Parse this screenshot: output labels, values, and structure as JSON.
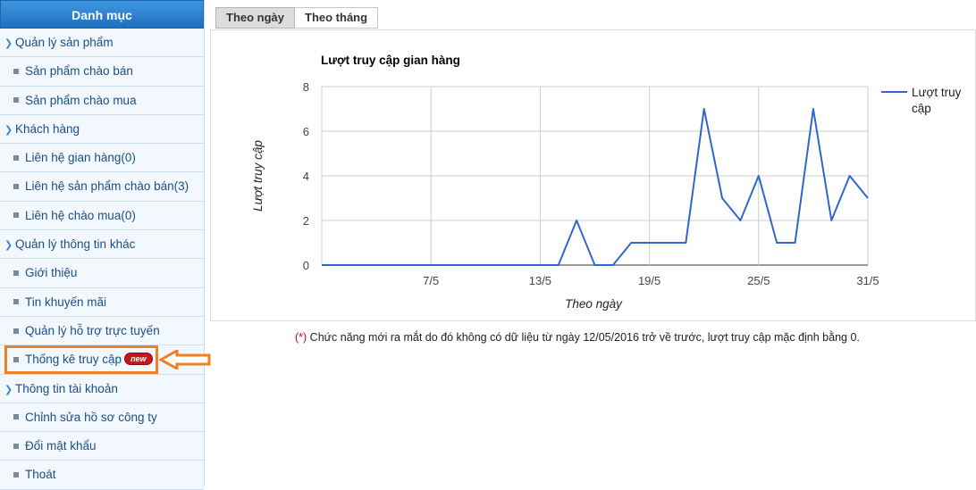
{
  "sidebar": {
    "header": "Danh mục",
    "items": [
      {
        "label": "Quản lý sản phẩm",
        "kind": "group"
      },
      {
        "label": "Sản phẩm chào bán",
        "kind": "sub"
      },
      {
        "label": "Sản phẩm chào mua",
        "kind": "sub"
      },
      {
        "label": "Khách hàng",
        "kind": "group"
      },
      {
        "label": "Liên hệ gian hàng(0)",
        "kind": "sub"
      },
      {
        "label": "Liên hệ sản phẩm chào bán(3)",
        "kind": "sub"
      },
      {
        "label": "Liên hệ chào mua(0)",
        "kind": "sub"
      },
      {
        "label": "Quản lý thông tin khác",
        "kind": "group"
      },
      {
        "label": "Giới thiệu",
        "kind": "sub"
      },
      {
        "label": "Tin khuyến mãi",
        "kind": "sub"
      },
      {
        "label": "Quản lý hỗ trợ trực tuyến",
        "kind": "sub"
      },
      {
        "label": "Thống kê truy cập",
        "kind": "sub",
        "badge": "new",
        "highlighted": true
      },
      {
        "label": "Thông tin tài khoản",
        "kind": "group"
      },
      {
        "label": "Chỉnh sửa hồ sơ công ty",
        "kind": "sub"
      },
      {
        "label": "Đổi mật khẩu",
        "kind": "sub"
      },
      {
        "label": "Thoát",
        "kind": "sub"
      }
    ]
  },
  "tabs": [
    {
      "label": "Theo ngày",
      "active": true
    },
    {
      "label": "Theo tháng",
      "active": false
    }
  ],
  "chart_data": {
    "type": "line",
    "title": "Lượt truy cập gian hàng",
    "xlabel": "Theo ngày",
    "ylabel": "Lượt truy cập",
    "ylim": [
      0,
      8
    ],
    "yticks": [
      0,
      2,
      4,
      6,
      8
    ],
    "x_tick_labels": [
      {
        "day": 7,
        "label": "7/5"
      },
      {
        "day": 13,
        "label": "13/5"
      },
      {
        "day": 19,
        "label": "19/5"
      },
      {
        "day": 25,
        "label": "25/5"
      },
      {
        "day": 31,
        "label": "31/5"
      }
    ],
    "x": [
      1,
      2,
      3,
      4,
      5,
      6,
      7,
      8,
      9,
      10,
      11,
      12,
      13,
      14,
      15,
      16,
      17,
      18,
      19,
      20,
      21,
      22,
      23,
      24,
      25,
      26,
      27,
      28,
      29,
      30,
      31
    ],
    "series": [
      {
        "name": "Lượt truy cập",
        "color": "#3366cc",
        "values": [
          0,
          0,
          0,
          0,
          0,
          0,
          0,
          0,
          0,
          0,
          0,
          0,
          0,
          0,
          2,
          0,
          0,
          1,
          1,
          1,
          1,
          7,
          3,
          2,
          4,
          1,
          1,
          7,
          2,
          4,
          3
        ]
      }
    ],
    "legend": "right",
    "grid": true
  },
  "note": {
    "star": "(*)",
    "text": " Chức năng mới ra mắt do đó không có dữ liệu từ ngày 12/05/2016 trở về trước, lượt truy cập mặc định bằng 0."
  }
}
